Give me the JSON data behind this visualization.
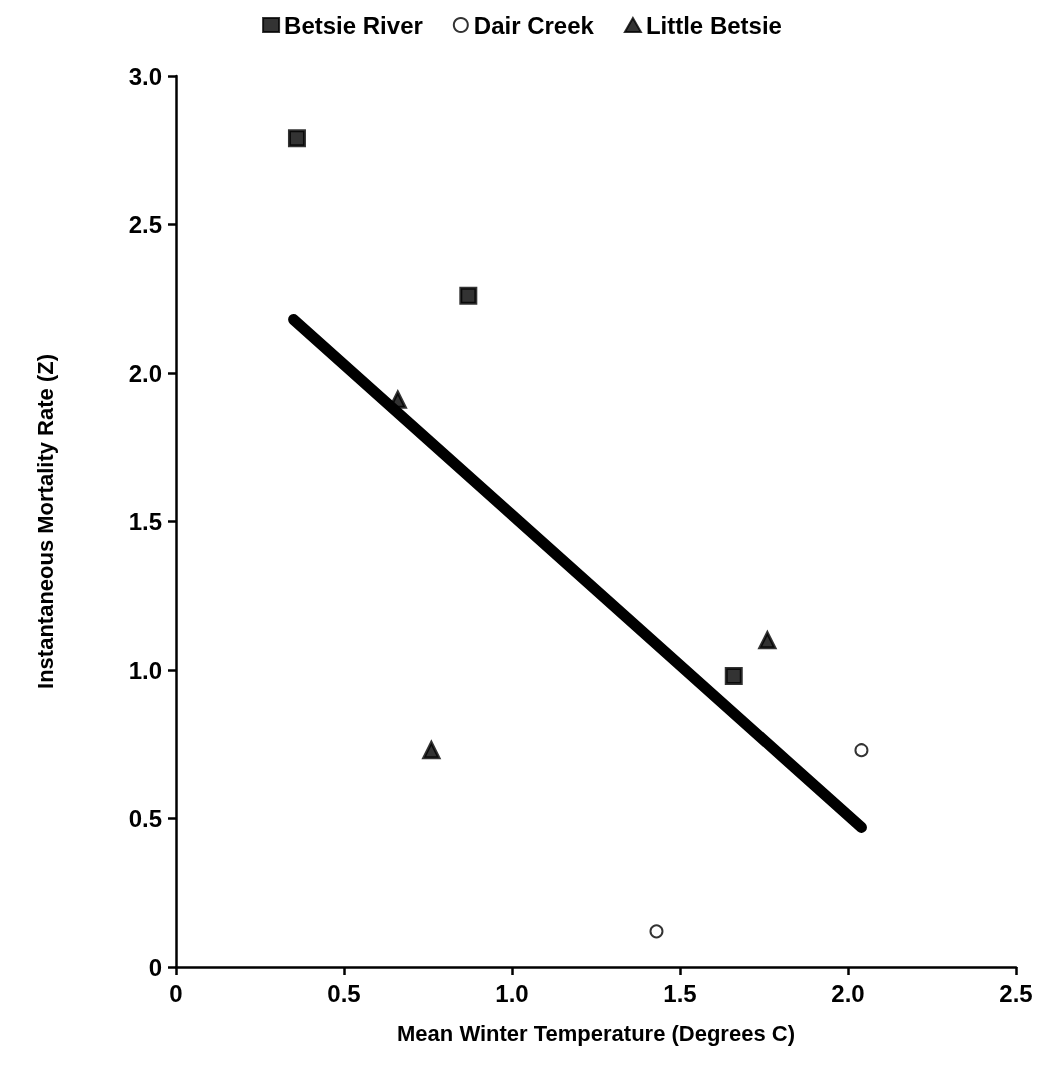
{
  "chart_data": {
    "type": "scatter",
    "xlabel": "Mean Winter Temperature (Degrees C)",
    "ylabel": "Instantaneous Mortality Rate (Z)",
    "xlim": [
      0,
      2.5
    ],
    "ylim": [
      0,
      3.0
    ],
    "xticks": [
      0,
      {
        "value": 0.5,
        "label": "0.5"
      },
      {
        "value": 1,
        "label": "1.0"
      },
      {
        "value": 1.5,
        "label": "1.5"
      },
      {
        "value": 2,
        "label": "2.0"
      },
      {
        "value": 2.5,
        "label": "2.5"
      }
    ],
    "yticks": [
      0,
      {
        "value": 0.5,
        "label": "0.5"
      },
      {
        "value": 1,
        "label": "1.0"
      },
      {
        "value": 1.5,
        "label": "1.5"
      },
      {
        "value": 2,
        "label": "2.0"
      },
      {
        "value": 2.5,
        "label": "2.5"
      },
      {
        "value": 3,
        "label": "3.0"
      }
    ],
    "grid": false,
    "legend": "top",
    "series": [
      {
        "name": "Betsie River",
        "color": "#000000",
        "marker": "square",
        "x": [
          0.36,
          0.87,
          1.66
        ],
        "values": [
          2.79,
          2.26,
          0.98
        ]
      },
      {
        "name": "Dair Creek",
        "color": "#000000",
        "marker": "circle",
        "x": [
          1.43,
          2.04
        ],
        "values": [
          0.12,
          0.73
        ]
      },
      {
        "name": "Little Betsie",
        "color": "#000000",
        "marker": "triangle",
        "x": [
          0.66,
          0.76,
          1.76
        ],
        "values": [
          1.91,
          0.73,
          1.1
        ]
      },
      {
        "type": "line",
        "color": "#000000",
        "marker": "none",
        "x": [
          0.35,
          2.04
        ],
        "values": [
          2.18,
          0.47
        ]
      }
    ]
  }
}
